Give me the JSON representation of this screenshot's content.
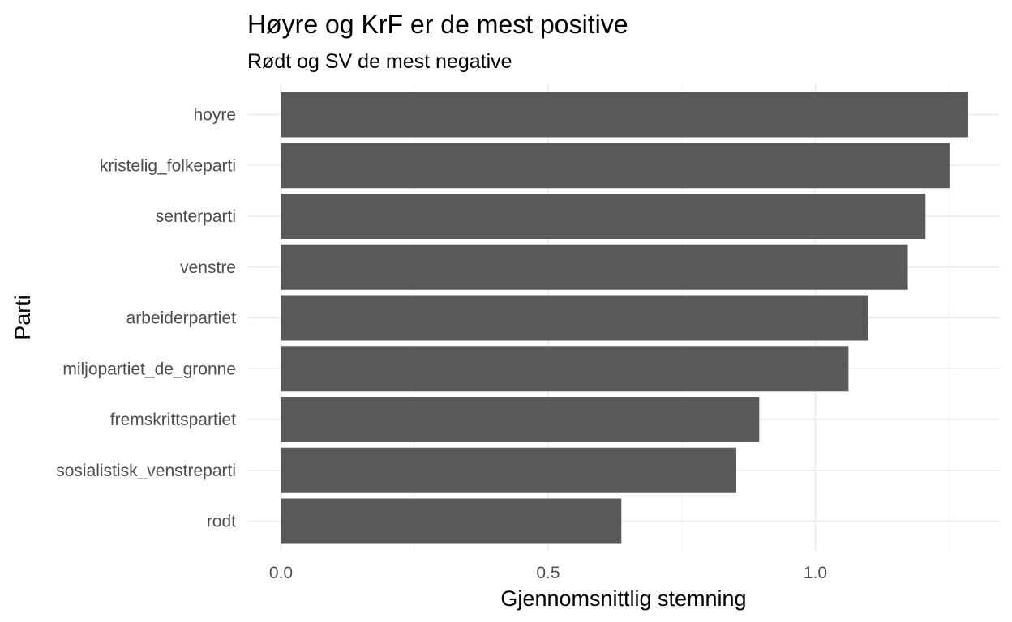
{
  "chart_data": {
    "type": "bar",
    "orientation": "horizontal",
    "title": "Høyre og KrF er de mest positive",
    "subtitle": "Rødt og SV de mest negative",
    "xlabel": "Gjennomsnittlig stemning",
    "ylabel": "Parti",
    "categories": [
      "hoyre",
      "kristelig_folkeparti",
      "senterparti",
      "venstre",
      "arbeiderpartiet",
      "miljopartiet_de_gronne",
      "fremskrittspartiet",
      "sosialistisk_venstreparti",
      "rodt"
    ],
    "values": [
      1.286,
      1.251,
      1.206,
      1.173,
      1.099,
      1.062,
      0.895,
      0.852,
      0.637
    ],
    "xlim": [
      0,
      1.3
    ],
    "xticks": [
      0.0,
      0.5,
      1.0
    ],
    "xtick_labels": [
      "0.0",
      "0.5",
      "1.0"
    ],
    "bar_color": "#595959",
    "grid": true,
    "legend": "none"
  }
}
